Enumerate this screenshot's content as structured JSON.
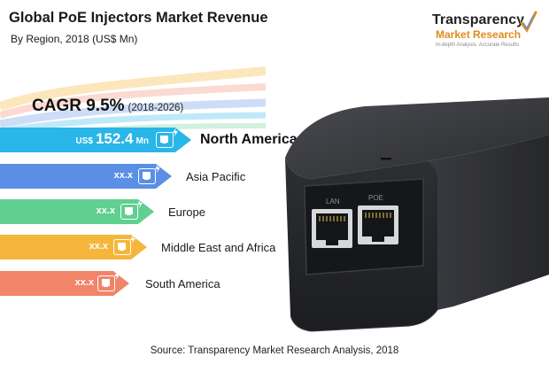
{
  "header": {
    "title": "Global PoE Injectors Market Revenue",
    "subtitle": "By Region, 2018 (US$ Mn)"
  },
  "logo": {
    "name_top": "Transparency",
    "name_bottom": "Market Research",
    "tagline": "In-depth Analysis. Accurate Results"
  },
  "cagr": {
    "label": "CAGR 9.5%",
    "period": "(2018-2026)"
  },
  "regions": [
    {
      "name": "North America",
      "value_prefix": "US$",
      "value": "152.4",
      "value_unit": "Mn",
      "color": "#29b6e8",
      "featured": true
    },
    {
      "name": "Asia Pacific",
      "value": "xx.x",
      "color": "#5b8fe6",
      "featured": false
    },
    {
      "name": "Europe",
      "value": "xx.x",
      "color": "#5fd08f",
      "featured": false
    },
    {
      "name": "Middle East and Africa",
      "value": "xx.x",
      "color": "#f5b63b",
      "featured": false
    },
    {
      "name": "South America",
      "value": "xx.x",
      "color": "#f2846a",
      "featured": false
    }
  ],
  "device": {
    "port_1_label": "LAN",
    "port_2_label": "POE"
  },
  "source": "Source: Transparency Market Research Analysis, 2018",
  "colors": {
    "logo_accent": "#e08a1e",
    "device_body": "#2b2c30"
  }
}
